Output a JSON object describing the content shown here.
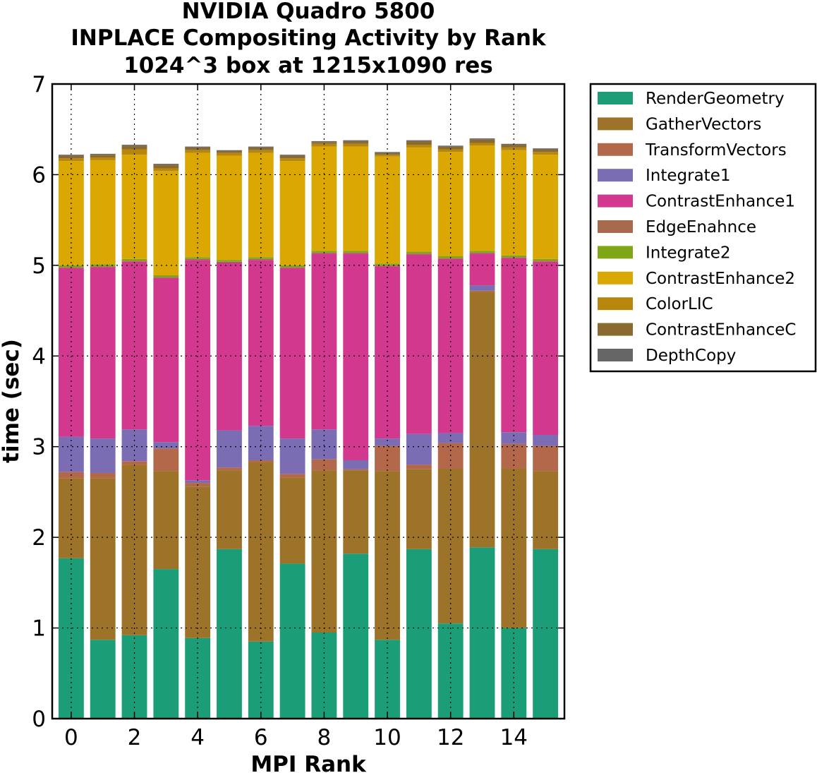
{
  "chart_data": {
    "type": "bar",
    "stacked": true,
    "title": [
      "NVIDIA Quadro 5800",
      "INPLACE Compositing Activity by Rank",
      "1024^3 box at 1215x1090 res"
    ],
    "xlabel": "MPI Rank",
    "ylabel": "time (sec)",
    "ylim": [
      0,
      7
    ],
    "xlim": [
      -0.6,
      15.6
    ],
    "xticks": [
      0,
      2,
      4,
      6,
      8,
      10,
      12,
      14
    ],
    "yticks": [
      0,
      1,
      2,
      3,
      4,
      5,
      6,
      7
    ],
    "grid": true,
    "legend_position": "outside-right",
    "categories": [
      0,
      1,
      2,
      3,
      4,
      5,
      6,
      7,
      8,
      9,
      10,
      11,
      12,
      13,
      14,
      15
    ],
    "series": [
      {
        "name": "RenderGeometry",
        "color": "#1b9e77",
        "values": [
          1.77,
          0.87,
          0.92,
          1.65,
          0.89,
          1.87,
          0.85,
          1.71,
          0.95,
          1.82,
          0.87,
          1.87,
          1.05,
          1.89,
          1.0,
          1.87
        ]
      },
      {
        "name": "GatherVectors",
        "color": "#9c7328",
        "values": [
          0.88,
          1.78,
          1.88,
          1.08,
          1.67,
          0.87,
          1.98,
          0.95,
          1.79,
          0.92,
          1.86,
          0.88,
          1.71,
          2.82,
          1.76,
          0.86
        ]
      },
      {
        "name": "TransformVectors",
        "color": "#b3684a",
        "values": [
          0.07,
          0.06,
          0.04,
          0.25,
          0.04,
          0.03,
          0.02,
          0.04,
          0.12,
          0.01,
          0.28,
          0.05,
          0.28,
          0.01,
          0.27,
          0.28
        ]
      },
      {
        "name": "Integrate1",
        "color": "#7c6cb4",
        "values": [
          0.39,
          0.38,
          0.35,
          0.07,
          0.03,
          0.41,
          0.38,
          0.39,
          0.33,
          0.1,
          0.08,
          0.34,
          0.11,
          0.06,
          0.13,
          0.12
        ]
      },
      {
        "name": "ContrastEnhance1",
        "color": "#d2388e",
        "values": [
          1.86,
          1.89,
          1.85,
          1.81,
          2.43,
          1.85,
          1.83,
          1.88,
          1.94,
          2.28,
          1.9,
          1.98,
          1.92,
          0.35,
          1.92,
          1.91
        ]
      },
      {
        "name": "EdgeEnahnce",
        "color": "#a8694f",
        "values": [
          0.01,
          0.01,
          0.01,
          0.01,
          0.01,
          0.01,
          0.01,
          0.01,
          0.01,
          0.01,
          0.01,
          0.01,
          0.01,
          0.01,
          0.01,
          0.01
        ]
      },
      {
        "name": "Integrate2",
        "color": "#7fa617",
        "values": [
          0.02,
          0.02,
          0.02,
          0.02,
          0.02,
          0.02,
          0.02,
          0.02,
          0.02,
          0.02,
          0.02,
          0.02,
          0.02,
          0.02,
          0.02,
          0.02
        ]
      },
      {
        "name": "ContrastEnhance2",
        "color": "#dba803",
        "values": [
          1.15,
          1.15,
          1.15,
          1.15,
          1.15,
          1.15,
          1.15,
          1.15,
          1.15,
          1.15,
          1.18,
          1.15,
          1.15,
          1.16,
          1.16,
          1.15
        ]
      },
      {
        "name": "ColorLIC",
        "color": "#b8860b",
        "values": [
          0.03,
          0.03,
          0.06,
          0.03,
          0.03,
          0.03,
          0.03,
          0.03,
          0.03,
          0.03,
          0.02,
          0.03,
          0.03,
          0.03,
          0.03,
          0.03
        ]
      },
      {
        "name": "ContrastEnhanceC",
        "color": "#8b6a32",
        "values": [
          0.03,
          0.03,
          0.04,
          0.04,
          0.03,
          0.02,
          0.03,
          0.03,
          0.02,
          0.03,
          0.02,
          0.04,
          0.03,
          0.04,
          0.03,
          0.03
        ]
      },
      {
        "name": "DepthCopy",
        "color": "#666666",
        "values": [
          0.01,
          0.01,
          0.01,
          0.01,
          0.01,
          0.01,
          0.01,
          0.01,
          0.01,
          0.01,
          0.01,
          0.01,
          0.01,
          0.01,
          0.01,
          0.01
        ]
      }
    ]
  }
}
